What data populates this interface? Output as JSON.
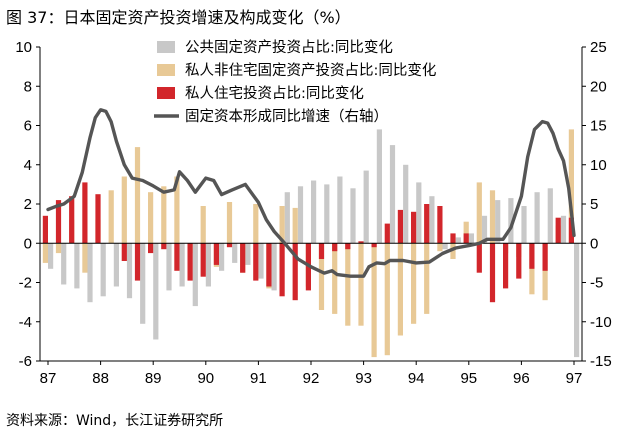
{
  "figure": {
    "title": "图 37：日本固定资产投资增速及构成变化（%）",
    "source": "资料来源：Wind，长江证券研究所"
  },
  "chart_data": {
    "type": "bar",
    "title": "图 37：日本固定资产投资增速及构成变化（%）",
    "x_tick_labels": [
      "87",
      "88",
      "89",
      "90",
      "91",
      "92",
      "93",
      "94",
      "95",
      "96",
      "97"
    ],
    "x_range": [
      1987,
      1997
    ],
    "y_left": {
      "range": [
        -6,
        10
      ],
      "ticks": [
        -6,
        -4,
        -2,
        0,
        2,
        4,
        6,
        8,
        10
      ]
    },
    "y_right": {
      "range": [
        -15,
        25
      ],
      "ticks": [
        -15,
        -10,
        -5,
        0,
        5,
        10,
        15,
        20,
        25
      ]
    },
    "legend_position": "top-center",
    "colors": {
      "public": "#c8c8c8",
      "private_nonres": "#e8c996",
      "private_res": "#d2262b",
      "total_line": "#555555"
    },
    "series": [
      {
        "name": "公共固定资产投资占比:同比变化",
        "kind": "bar",
        "axis": "left",
        "x": [
          1987.0,
          1987.25,
          1987.5,
          1987.75,
          1988.0,
          1988.25,
          1988.5,
          1988.75,
          1989.0,
          1989.25,
          1989.5,
          1989.75,
          1990.0,
          1990.25,
          1990.5,
          1990.75,
          1991.0,
          1991.25,
          1991.5,
          1991.75,
          1992.0,
          1992.25,
          1992.5,
          1992.75,
          1993.0,
          1993.25,
          1993.5,
          1993.75,
          1994.0,
          1994.25,
          1994.5,
          1994.75,
          1995.0,
          1995.25,
          1995.5,
          1995.75,
          1996.0,
          1996.25,
          1996.5,
          1996.75,
          1997.0
        ],
        "values": [
          -1.3,
          -2.1,
          -2.3,
          -3.0,
          -2.7,
          -2.2,
          -2.8,
          -4.1,
          -4.9,
          -2.4,
          -2.2,
          -3.2,
          -2.2,
          -1.4,
          -1.0,
          -1.1,
          -1.8,
          -2.4,
          2.6,
          2.9,
          3.2,
          3.0,
          3.4,
          2.8,
          3.7,
          5.8,
          5.0,
          4.0,
          3.1,
          2.4,
          -0.3,
          0.3,
          0.5,
          1.4,
          2.2,
          2.3,
          1.9,
          2.6,
          2.8,
          1.4,
          -5.8
        ]
      },
      {
        "name": "私人非住宅固定资产投资占比:同比变化",
        "kind": "bar",
        "axis": "left",
        "x": [
          1987.0,
          1987.25,
          1987.5,
          1987.75,
          1988.0,
          1988.25,
          1988.5,
          1988.75,
          1989.0,
          1989.25,
          1989.5,
          1989.75,
          1990.0,
          1990.25,
          1990.5,
          1990.75,
          1991.0,
          1991.25,
          1991.5,
          1991.75,
          1992.0,
          1992.25,
          1992.5,
          1992.75,
          1993.0,
          1993.25,
          1993.5,
          1993.75,
          1994.0,
          1994.25,
          1994.5,
          1994.75,
          1995.0,
          1995.25,
          1995.5,
          1995.75,
          1996.0,
          1996.25,
          1996.5,
          1996.75,
          1997.0
        ],
        "values": [
          -1.0,
          -0.5,
          1.2,
          -1.5,
          1.2,
          2.7,
          3.4,
          4.9,
          2.6,
          2.9,
          3.4,
          -0.5,
          1.9,
          -1.2,
          2.1,
          -1.5,
          2.0,
          -2.3,
          1.9,
          1.8,
          -2.2,
          -3.4,
          -3.6,
          -4.2,
          -4.2,
          -5.8,
          -5.7,
          -4.7,
          -4.1,
          -3.6,
          -0.4,
          -0.8,
          1.1,
          3.1,
          2.7,
          -0.5,
          -0.7,
          -2.6,
          -2.9,
          0.9,
          5.8
        ]
      },
      {
        "name": "私人住宅投资占比:同比变化",
        "kind": "bar",
        "axis": "left",
        "x": [
          1987.0,
          1987.25,
          1987.5,
          1987.75,
          1988.0,
          1988.25,
          1988.5,
          1988.75,
          1989.0,
          1989.25,
          1989.5,
          1989.75,
          1990.0,
          1990.25,
          1990.5,
          1990.75,
          1991.0,
          1991.25,
          1991.5,
          1991.75,
          1992.0,
          1992.25,
          1992.5,
          1992.75,
          1993.0,
          1993.25,
          1993.5,
          1993.75,
          1994.0,
          1994.25,
          1994.5,
          1994.75,
          1995.0,
          1995.25,
          1995.5,
          1995.75,
          1996.0,
          1996.25,
          1996.5,
          1996.75,
          1997.0
        ],
        "values": [
          1.4,
          2.2,
          2.4,
          3.1,
          2.5,
          0.0,
          -0.9,
          -1.9,
          -0.5,
          -0.3,
          -1.4,
          -1.9,
          -1.7,
          -1.1,
          -0.2,
          -1.5,
          -1.9,
          -2.2,
          -2.7,
          -2.9,
          -2.4,
          -0.8,
          -0.4,
          -0.3,
          0.1,
          -0.2,
          1.0,
          1.7,
          1.6,
          2.0,
          1.9,
          0.5,
          0.5,
          -1.5,
          -3.0,
          -2.3,
          -1.8,
          -1.3,
          -1.4,
          1.3,
          1.3
        ]
      },
      {
        "name": "固定资本形成同比增速（右轴）",
        "kind": "line",
        "axis": "right",
        "x": [
          1987.0,
          1987.15,
          1987.3,
          1987.5,
          1987.65,
          1987.8,
          1987.9,
          1988.0,
          1988.1,
          1988.2,
          1988.3,
          1988.45,
          1988.6,
          1988.8,
          1989.0,
          1989.2,
          1989.4,
          1989.5,
          1989.65,
          1989.8,
          1990.0,
          1990.15,
          1990.3,
          1990.5,
          1990.75,
          1991.0,
          1991.15,
          1991.3,
          1991.5,
          1991.75,
          1992.0,
          1992.25,
          1992.4,
          1992.5,
          1992.75,
          1993.0,
          1993.1,
          1993.25,
          1993.4,
          1993.5,
          1993.75,
          1994.0,
          1994.25,
          1994.5,
          1994.75,
          1995.0,
          1995.2,
          1995.35,
          1995.5,
          1995.65,
          1995.8,
          1996.0,
          1996.12,
          1996.25,
          1996.4,
          1996.5,
          1996.6,
          1996.7,
          1996.8,
          1996.9,
          1997.0
        ],
        "values": [
          4.3,
          4.7,
          5.0,
          6.0,
          9.0,
          13.5,
          16.0,
          17.0,
          16.8,
          15.5,
          13.0,
          10.0,
          8.3,
          8.0,
          7.3,
          6.5,
          6.8,
          9.1,
          8.0,
          6.5,
          8.3,
          8.0,
          6.2,
          6.8,
          7.5,
          5.2,
          3.0,
          1.5,
          0.0,
          -2.0,
          -3.0,
          -3.8,
          -3.5,
          -4.0,
          -4.2,
          -4.2,
          -3.0,
          -2.5,
          -2.6,
          -2.2,
          -2.2,
          -2.5,
          -2.4,
          -1.3,
          -0.6,
          -0.3,
          0.0,
          0.5,
          0.5,
          0.5,
          2.0,
          6.0,
          11.0,
          14.5,
          15.5,
          15.3,
          14.0,
          12.0,
          10.5,
          7.0,
          1.0
        ]
      }
    ]
  }
}
